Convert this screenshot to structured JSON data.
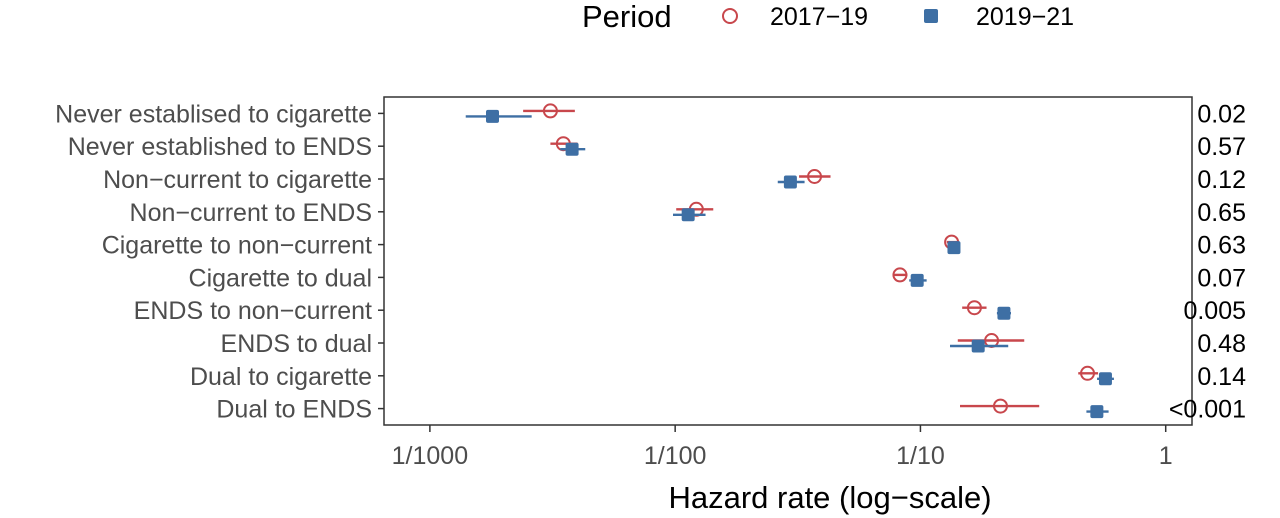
{
  "chart_data": {
    "type": "scatter",
    "subtype": "forest-plot",
    "xlabel": "Hazard rate (log−scale)",
    "x_scale": "log10",
    "xlim": [
      0.00065,
      1.28
    ],
    "x_ticks": [
      {
        "value": 0.001,
        "label": "1/1000"
      },
      {
        "value": 0.01,
        "label": "1/100"
      },
      {
        "value": 0.1,
        "label": "1/10"
      },
      {
        "value": 1,
        "label": "1"
      }
    ],
    "grid": false,
    "legend": {
      "title": "Period",
      "position": "top",
      "entries": [
        {
          "label": "2017−19",
          "marker": "open-circle",
          "color": "#c8474c"
        },
        {
          "label": "2019−21",
          "marker": "filled-square",
          "color": "#3e6fa4"
        }
      ]
    },
    "categories": [
      "Never establised to cigarette",
      "Never established to ENDS",
      "Non−current to cigarette",
      "Non−current to ENDS",
      "Cigarette to non−current",
      "Cigarette to dual",
      "ENDS to non−current",
      "ENDS to dual",
      "Dual to cigarette",
      "Dual to ENDS"
    ],
    "p_values": [
      "0.02",
      "0.57",
      "0.12",
      "0.65",
      "0.63",
      "0.07",
      "0.005",
      "0.48",
      "0.14",
      "<0.001"
    ],
    "series": [
      {
        "name": "2017−19",
        "color": "#c8474c",
        "estimate": [
          0.0031,
          0.0035,
          0.037,
          0.0122,
          0.134,
          0.0825,
          0.166,
          0.195,
          0.48,
          0.212
        ],
        "lower": [
          0.0024,
          0.0031,
          0.032,
          0.0101,
          0.128,
          0.0775,
          0.148,
          0.142,
          0.44,
          0.145
        ],
        "upper": [
          0.0039,
          0.004,
          0.043,
          0.0143,
          0.141,
          0.0885,
          0.186,
          0.265,
          0.53,
          0.305
        ]
      },
      {
        "name": "2019−21",
        "color": "#3e6fa4",
        "estimate": [
          0.0018,
          0.0038,
          0.0295,
          0.0113,
          0.137,
          0.097,
          0.219,
          0.172,
          0.568,
          0.524
        ],
        "lower": [
          0.0014,
          0.0034,
          0.0262,
          0.0098,
          0.131,
          0.09,
          0.205,
          0.132,
          0.525,
          0.475
        ],
        "upper": [
          0.0026,
          0.0043,
          0.0337,
          0.0133,
          0.144,
          0.106,
          0.234,
          0.228,
          0.615,
          0.585
        ]
      }
    ]
  }
}
